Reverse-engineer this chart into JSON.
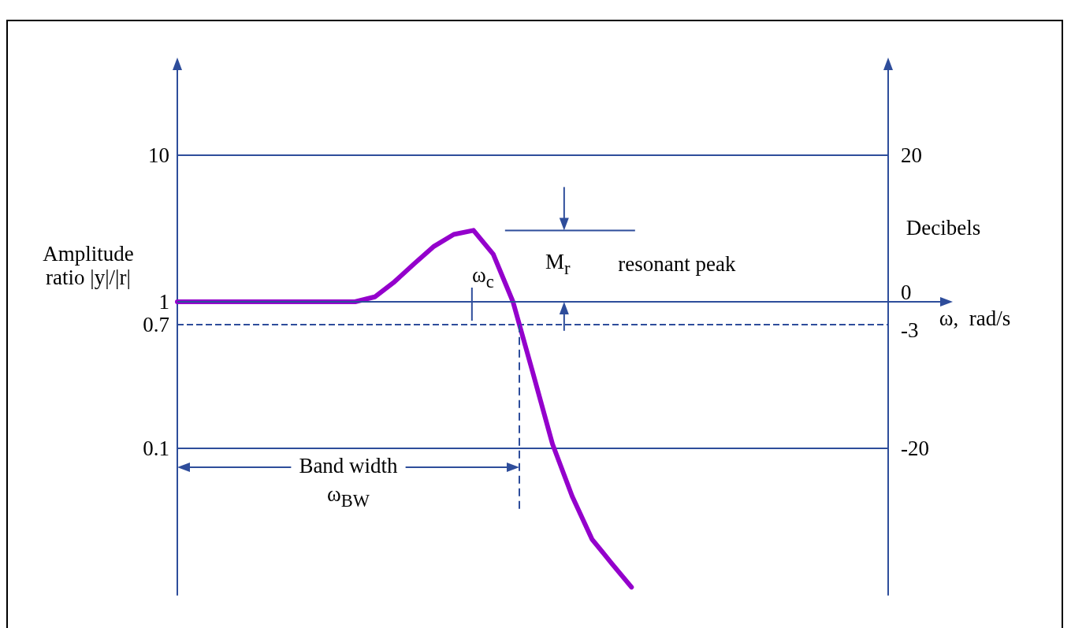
{
  "chart_data": {
    "type": "line",
    "xlabel": "ω,  rad/s",
    "ylabel": "Amplitude ratio |y|/|r|",
    "y2label": "Decibels",
    "categories": [
      null,
      null,
      null,
      null,
      null,
      null,
      null,
      null,
      null,
      null,
      null,
      null,
      null,
      null,
      null,
      null,
      null,
      null,
      null,
      null,
      null,
      null,
      null,
      null,
      null,
      null,
      null,
      null,
      null,
      null,
      null,
      null,
      null,
      null,
      null,
      null,
      null
    ],
    "series": [
      {
        "color": "#9400cc",
        "values": [
          1,
          1,
          1,
          1,
          1,
          1,
          1,
          1,
          1,
          1,
          1.08,
          1.37,
          1.82,
          2.39,
          2.88,
          3.07,
          2.11,
          1.0,
          0.33,
          0.107,
          0.047,
          0.024,
          0.0164,
          0.0113,
          null,
          null,
          null,
          null,
          null,
          null,
          null,
          null,
          null,
          null,
          null,
          null,
          null
        ]
      }
    ],
    "log": "y",
    "ylim": [
      0.01,
      40
    ],
    "yticks": [
      10,
      1,
      0.7,
      0.1
    ],
    "y2lim": [
      -40,
      32
    ],
    "y2ticks": [
      20,
      0,
      -3,
      -20
    ],
    "tick_labels": "y",
    "ref_lines": [
      {
        "axis": "y",
        "value": 0.7,
        "color": "#2e4d9b",
        "line_style": "dashed"
      }
    ],
    "annotations": [
      "ω$_{c}$",
      "M$_{r}$",
      "resonant peak",
      "Band width",
      "ω$_{BW}$"
    ],
    "grid": "y"
  }
}
